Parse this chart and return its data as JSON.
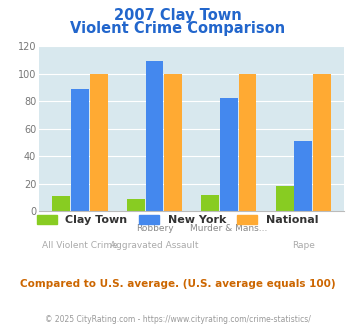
{
  "title_line1": "2007 Clay Town",
  "title_line2": "Violent Crime Comparison",
  "cat_labels_top": [
    "",
    "Robbery",
    "Murder & Mans...",
    ""
  ],
  "cat_labels_bottom": [
    "All Violent Crime",
    "Aggravated Assault",
    "",
    "Rape"
  ],
  "clay_town": [
    11,
    9,
    12,
    18
  ],
  "new_york": [
    89,
    109,
    82,
    51
  ],
  "national": [
    100,
    100,
    100,
    100
  ],
  "clay_color": "#88cc22",
  "ny_color": "#4488ee",
  "national_color": "#ffaa33",
  "ylim": [
    0,
    120
  ],
  "yticks": [
    0,
    20,
    40,
    60,
    80,
    100,
    120
  ],
  "bg_color": "#d8e8ee",
  "fig_bg": "#ffffff",
  "title_color": "#2266cc",
  "footnote": "Compared to U.S. average. (U.S. average equals 100)",
  "copyright": "© 2025 CityRating.com - https://www.cityrating.com/crime-statistics/",
  "legend_labels": [
    "Clay Town",
    "New York",
    "National"
  ],
  "footnote_color": "#cc6600",
  "copyright_color": "#999999",
  "xlabel_top_color": "#888888",
  "xlabel_bottom_color": "#aaaaaa"
}
